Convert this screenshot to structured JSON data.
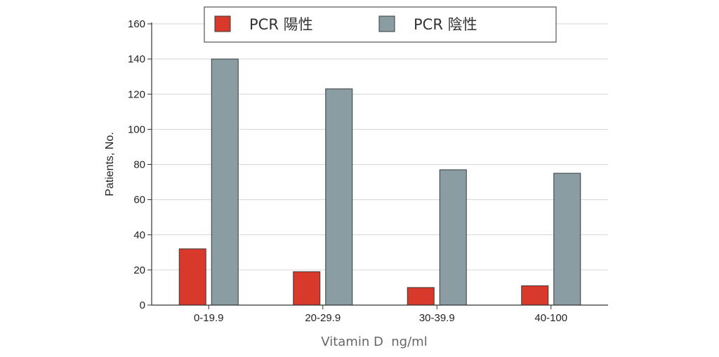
{
  "chart_data": {
    "type": "bar",
    "categories": [
      "0-19.9",
      "20-29.9",
      "30-39.9",
      "40-100"
    ],
    "series": [
      {
        "name": "PCR 陽性",
        "color": "#d9392a",
        "values": [
          32,
          19,
          10,
          11
        ]
      },
      {
        "name": "PCR 陰性",
        "color": "#8a9da3",
        "values": [
          140,
          123,
          77,
          75
        ]
      }
    ],
    "ylabel": "Patients, No.",
    "xlabel": "Vitamin D  ng/ml",
    "ylim": [
      0,
      160
    ],
    "yticks": [
      0,
      20,
      40,
      60,
      80,
      100,
      120,
      140,
      160
    ],
    "grid": true,
    "legend_position": "top"
  }
}
